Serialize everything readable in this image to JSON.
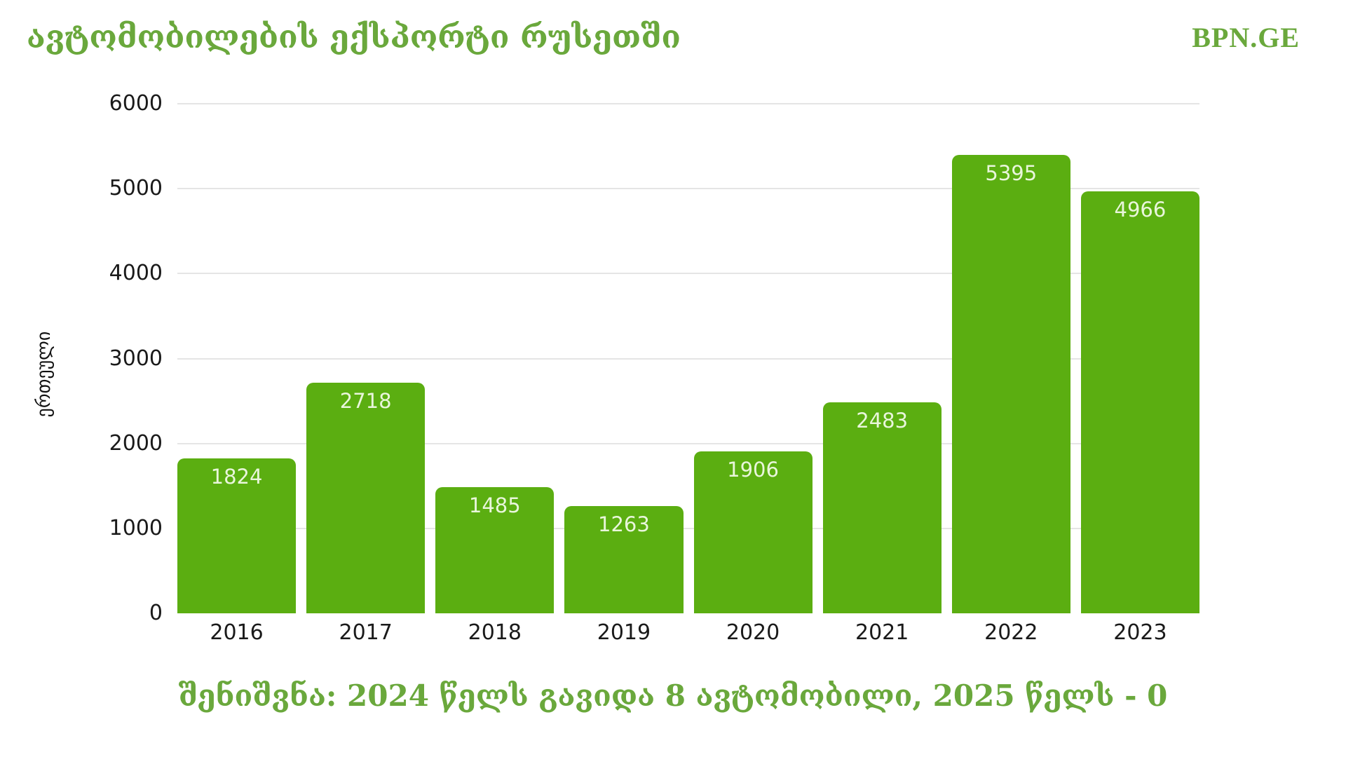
{
  "header": {
    "title": "ავტომობილების ექსპორტი რუსეთში",
    "logo": "BPN.GE"
  },
  "chart_data": {
    "type": "bar",
    "categories": [
      "2016",
      "2017",
      "2018",
      "2019",
      "2020",
      "2021",
      "2022",
      "2023"
    ],
    "values": [
      1824,
      2718,
      1485,
      1263,
      1906,
      2483,
      5395,
      4966
    ],
    "title": "ავტომობილების ექსპორტი რუსეთში",
    "xlabel": "",
    "ylabel": "ერთეული",
    "ylim": [
      0,
      6000
    ],
    "yticks": [
      0,
      1000,
      2000,
      3000,
      4000,
      5000,
      6000
    ],
    "grid": true,
    "legend": "none",
    "bar_color": "#5bae11",
    "bar_label_color": "#e9f6db"
  },
  "footer": {
    "note": "შენიშვნა: 2024 წელს გავიდა 8 ავტომობილი, 2025 წელს - 0"
  },
  "colors": {
    "accent_green": "#6aa83c",
    "bar_green": "#5bae11",
    "gridline": "#e5e5e5",
    "tick_text": "#1a1a1a"
  }
}
